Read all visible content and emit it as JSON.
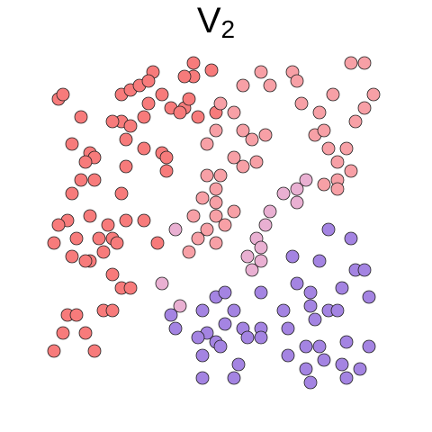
{
  "chart_data": {
    "type": "scatter",
    "title": "V",
    "title_subscript": "2",
    "xlim": [
      0,
      48
    ],
    "ylim": [
      0,
      48
    ],
    "series": [
      {
        "color": "#f77b7b",
        "x": [
          6.5,
          7,
          9,
          8,
          10,
          10.5,
          9.5,
          10.5,
          9,
          8,
          10,
          7.5,
          6.5,
          6,
          8.5,
          11,
          12,
          12.5,
          13,
          11.5,
          10,
          9.5,
          8,
          12.5,
          13.5,
          14.5,
          11.5,
          12.5,
          7.5,
          8.5,
          7,
          9.5,
          6,
          10.5,
          13.5,
          14.5,
          15.5,
          17,
          16.5,
          13.5,
          12.5,
          14.5,
          14,
          16.5,
          16,
          18,
          19,
          20.5,
          21,
          21.5,
          21.5,
          23.5,
          18,
          18.5,
          18.5,
          16,
          14,
          13.5,
          14,
          16,
          17.5,
          20,
          20.5,
          22,
          24
        ],
        "values": [
          37,
          37.5,
          35,
          32,
          31,
          30.5,
          30,
          28,
          28,
          26.5,
          24,
          23.5,
          23,
          21,
          21.5,
          21.5,
          23,
          21.5,
          21,
          20,
          19,
          19,
          19.5,
          17.5,
          16,
          16,
          13.5,
          13.5,
          13,
          13,
          11,
          11,
          9,
          9,
          37.5,
          38,
          38.5,
          40,
          39,
          34.5,
          34.5,
          34,
          32.5,
          36.5,
          35,
          37.5,
          36,
          36,
          37,
          39.5,
          41,
          40.2,
          31,
          30.5,
          29,
          31.5,
          29.5,
          26.5,
          23.5,
          23.5,
          21,
          35.5,
          39.5,
          35,
          35.5
        ]
      },
      {
        "color": "#f7a0a6",
        "x": [
          24.5,
          26,
          27,
          29,
          30,
          32.5,
          33,
          33.5,
          37,
          39,
          40.5,
          41.5,
          40.5,
          35.5,
          35,
          36,
          29.5,
          28,
          27,
          26,
          27,
          28.5,
          24,
          23,
          23,
          24.5,
          24,
          22.5,
          21.5,
          24,
          24,
          25,
          26,
          23,
          22,
          24,
          21,
          39.5,
          36.5,
          37.5,
          38.5,
          39,
          37.5,
          37.5,
          36
        ],
        "values": [
          36.5,
          35.5,
          38.5,
          40,
          38.5,
          40,
          39,
          36.5,
          37.5,
          41,
          41,
          37.5,
          36,
          35.5,
          33,
          33.5,
          33,
          32.5,
          33.5,
          30.5,
          29.5,
          30,
          33.5,
          32,
          28.5,
          28.5,
          27,
          26,
          24,
          25.5,
          24,
          23,
          24.5,
          22.5,
          21.5,
          21,
          20,
          34.5,
          31.5,
          30,
          31.5,
          29,
          28,
          27,
          27.5
        ]
      },
      {
        "color": "#e9b0d2",
        "x": [
          34,
          33,
          31.5,
          30,
          29.5,
          28.5,
          29,
          27.5,
          28,
          29,
          33,
          18,
          19.5,
          20
        ],
        "values": [
          28,
          27,
          26.5,
          24.5,
          23,
          21.5,
          20.5,
          19.5,
          18,
          19,
          25.5,
          16.5,
          22.5,
          14
        ]
      },
      {
        "color": "#a484e2",
        "x": [
          36.5,
          39,
          32.5,
          35.5,
          39.5,
          40.5,
          33,
          34.5,
          38,
          41,
          24,
          25,
          29,
          22.5,
          26,
          19,
          19.5,
          23,
          25,
          27,
          27.5,
          29,
          29,
          31.5,
          32,
          34.5,
          35,
          36.5,
          37.5,
          34,
          35.5,
          38.5,
          41,
          22,
          22.5,
          24,
          24.5,
          26.5,
          26,
          22.5,
          34,
          34.5,
          38,
          38.5,
          40,
          36,
          32
        ],
        "values": [
          22.5,
          21.5,
          19.5,
          19,
          18,
          18,
          16.5,
          15.5,
          16,
          15,
          15,
          15.5,
          15.5,
          13.5,
          13.5,
          13,
          11.5,
          11,
          12,
          11.5,
          10.5,
          11.5,
          10.5,
          13.5,
          11.5,
          14,
          12.5,
          13.5,
          13.5,
          9.5,
          9.5,
          10,
          9.5,
          10.5,
          8.5,
          10,
          9.5,
          7.5,
          6,
          6,
          7,
          5.5,
          7.5,
          6,
          7,
          8,
          8.5
        ]
      }
    ]
  }
}
